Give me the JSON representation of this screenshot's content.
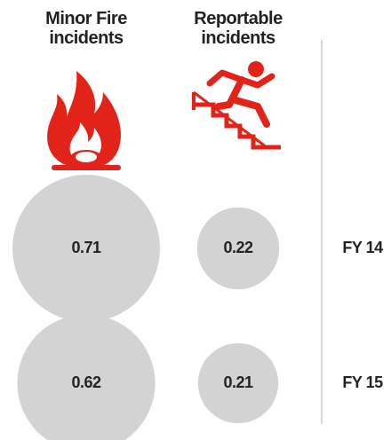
{
  "chart_data": {
    "type": "bubble",
    "categories": [
      "Minor Fire incidents",
      "Reportable incidents"
    ],
    "series": [
      {
        "name": "FY 14",
        "values": [
          0.71,
          0.22
        ]
      },
      {
        "name": "FY 15",
        "values": [
          0.62,
          0.21
        ]
      }
    ],
    "color": "#d3d3d3"
  }
}
